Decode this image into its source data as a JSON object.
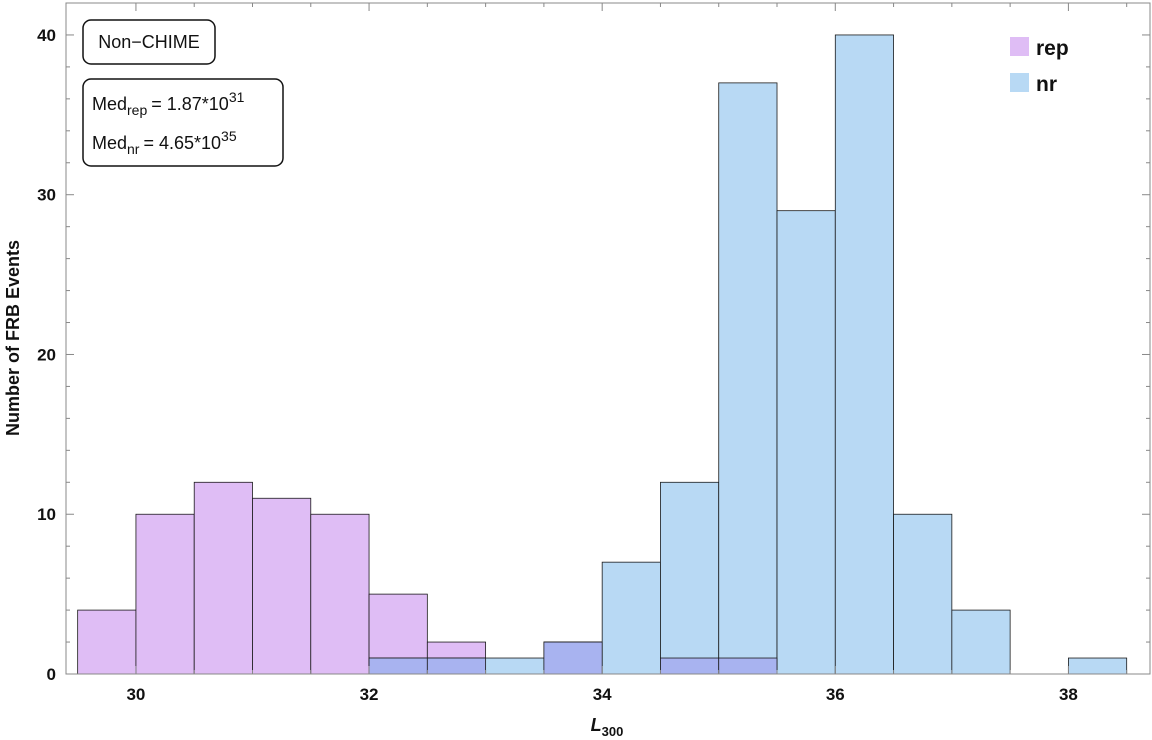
{
  "chart_data": {
    "type": "bar",
    "title": "",
    "xlabel": "L",
    "xlabel_sub": "300",
    "ylabel": "Number of FRB Events",
    "xlim": [
      29.4,
      38.7
    ],
    "ylim": [
      0,
      42
    ],
    "x_ticks": [
      30,
      32,
      34,
      36,
      38
    ],
    "y_ticks": [
      0,
      10,
      20,
      30,
      40
    ],
    "bin_width": 0.5,
    "grid": false,
    "legend_position": "top-right",
    "series": [
      {
        "name": "rep",
        "color": "#dfbdf5",
        "bin_starts": [
          29.5,
          30.0,
          30.5,
          31.0,
          31.5,
          32.0,
          32.5,
          33.5,
          34.5,
          35.0
        ],
        "values": [
          4,
          10,
          12,
          11,
          10,
          5,
          2,
          2,
          1,
          1
        ]
      },
      {
        "name": "nr",
        "color": "#b8d9f4",
        "bin_starts": [
          32.0,
          32.5,
          33.0,
          33.5,
          34.0,
          34.5,
          35.0,
          35.5,
          36.0,
          36.5,
          37.0,
          38.0
        ],
        "values": [
          1,
          1,
          1,
          2,
          7,
          12,
          37,
          29,
          40,
          10,
          4,
          1
        ]
      }
    ],
    "overlap_color": "#a8b3f0",
    "annotations": {
      "label_box": "Non−CHIME",
      "median_rep": {
        "prefix": "Med",
        "sub": "rep",
        "value": "= 1.87*10",
        "exp": "31"
      },
      "median_nr": {
        "prefix": "Med",
        "sub": "nr",
        "value": "= 4.65*10",
        "exp": "35"
      }
    }
  }
}
